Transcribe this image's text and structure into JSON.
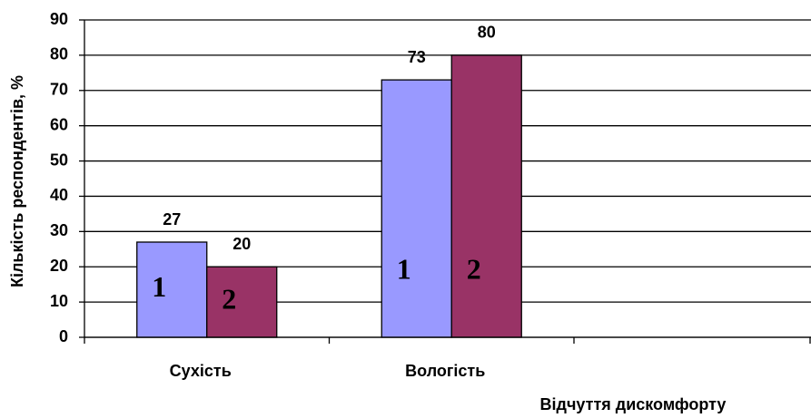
{
  "chart_data": {
    "type": "bar",
    "x_label": "Відчуття дискомфорту",
    "y_label": "Кількість респондентів, %",
    "categories": [
      "Сухість",
      "Вологість",
      null
    ],
    "series": [
      {
        "name": "1",
        "color": "#9999ff",
        "values": [
          27,
          73,
          null
        ]
      },
      {
        "name": "2",
        "color": "#993366",
        "values": [
          20,
          80,
          null
        ]
      }
    ],
    "ylim": [
      0,
      90
    ],
    "yticks": [
      0,
      10,
      20,
      30,
      40,
      50,
      60,
      70,
      80,
      90
    ],
    "grid": true
  }
}
